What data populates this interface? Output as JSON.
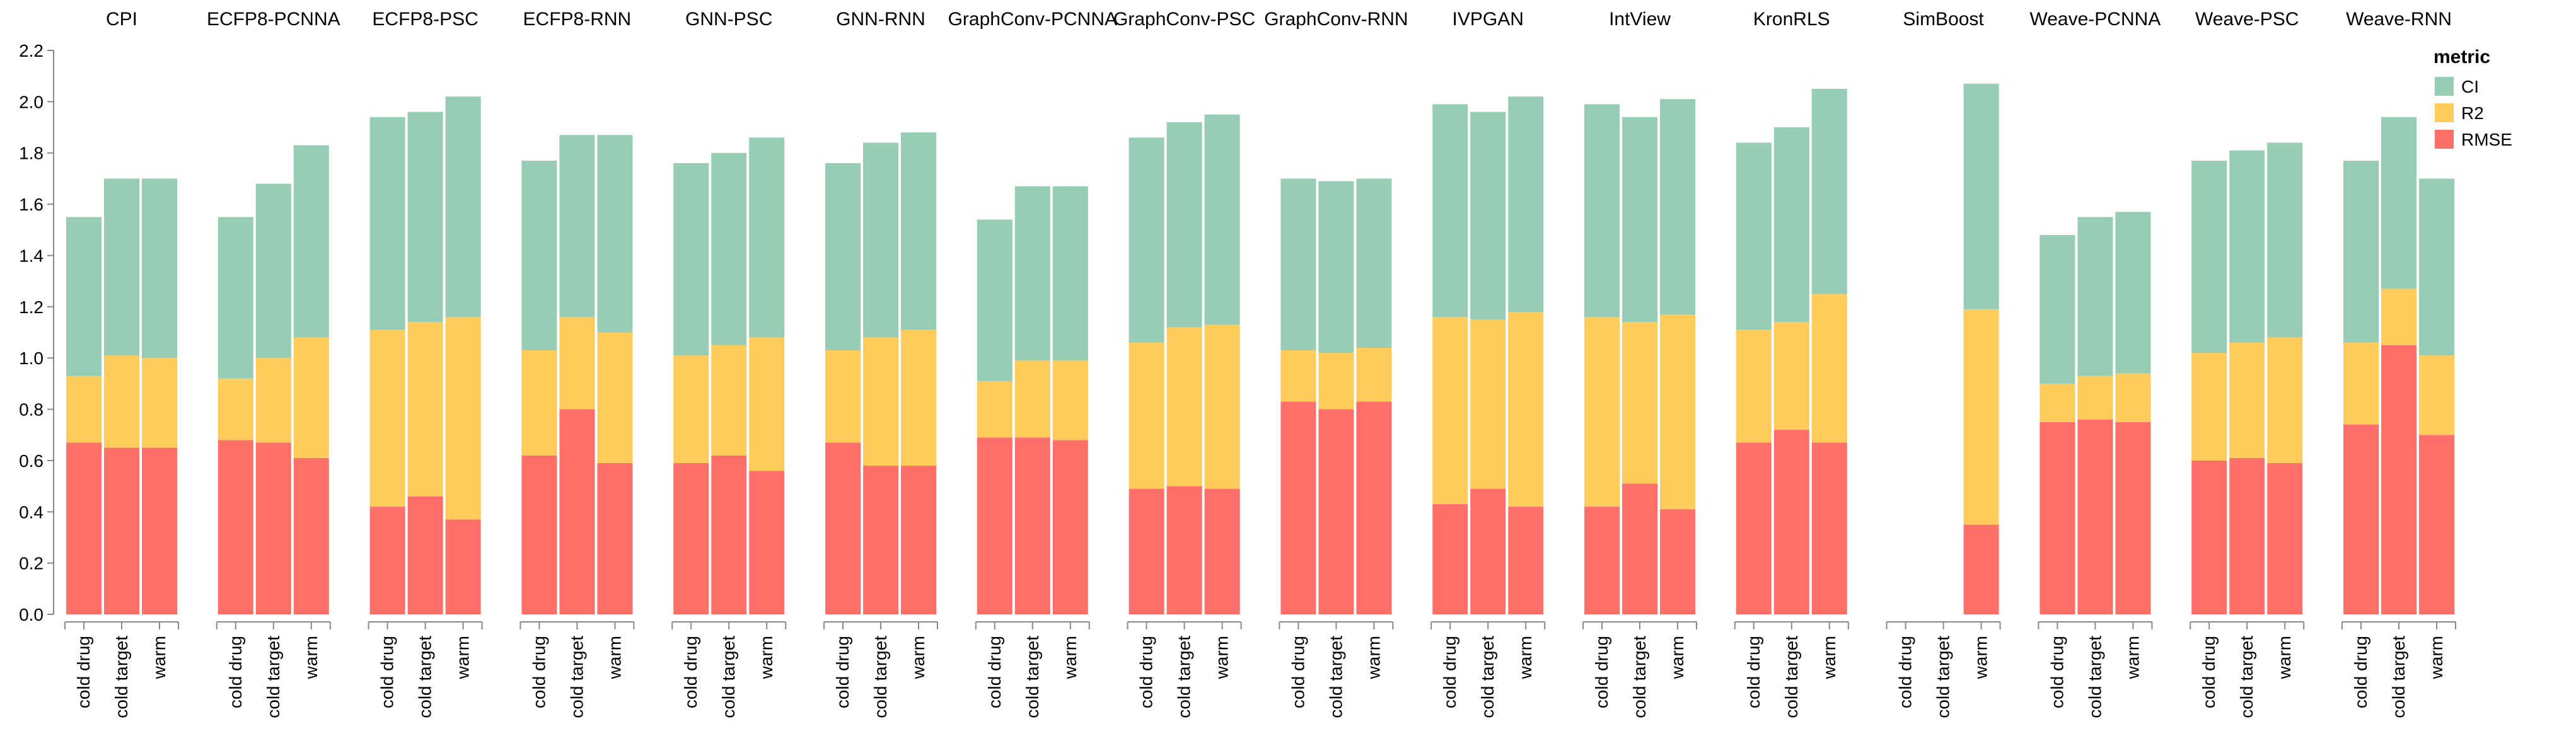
{
  "chart_data": {
    "type": "bar",
    "stacked": true,
    "faceted_by": "model",
    "legend": {
      "title": "metric",
      "position": "top-right",
      "entries": [
        {
          "name": "CI",
          "color": "#96CDB4"
        },
        {
          "name": "R2",
          "color": "#FFCC5C"
        },
        {
          "name": "RMSE",
          "color": "#FF6F69"
        }
      ]
    },
    "ylim": [
      0,
      2.2
    ],
    "yticks": [
      "0.0",
      "0.2",
      "0.4",
      "0.6",
      "0.8",
      "1.0",
      "1.2",
      "1.4",
      "1.6",
      "1.8",
      "2.0",
      "2.2"
    ],
    "categories": [
      "cold drug",
      "cold target",
      "warm"
    ],
    "stack_order": [
      "RMSE",
      "R2",
      "CI"
    ],
    "facets": [
      {
        "name": "CPI",
        "bars": [
          {
            "RMSE": 0.67,
            "R2": 0.26,
            "CI": 0.62
          },
          {
            "RMSE": 0.65,
            "R2": 0.36,
            "CI": 0.69
          },
          {
            "RMSE": 0.65,
            "R2": 0.35,
            "CI": 0.7
          }
        ]
      },
      {
        "name": "ECFP8-PCNNA",
        "bars": [
          {
            "RMSE": 0.68,
            "R2": 0.24,
            "CI": 0.63
          },
          {
            "RMSE": 0.67,
            "R2": 0.33,
            "CI": 0.68
          },
          {
            "RMSE": 0.61,
            "R2": 0.47,
            "CI": 0.75
          }
        ]
      },
      {
        "name": "ECFP8-PSC",
        "bars": [
          {
            "RMSE": 0.42,
            "R2": 0.69,
            "CI": 0.83
          },
          {
            "RMSE": 0.46,
            "R2": 0.68,
            "CI": 0.82
          },
          {
            "RMSE": 0.37,
            "R2": 0.79,
            "CI": 0.86
          }
        ]
      },
      {
        "name": "ECFP8-RNN",
        "bars": [
          {
            "RMSE": 0.62,
            "R2": 0.41,
            "CI": 0.74
          },
          {
            "RMSE": 0.8,
            "R2": 0.36,
            "CI": 0.71
          },
          {
            "RMSE": 0.59,
            "R2": 0.51,
            "CI": 0.77
          }
        ]
      },
      {
        "name": "GNN-PSC",
        "bars": [
          {
            "RMSE": 0.59,
            "R2": 0.42,
            "CI": 0.75
          },
          {
            "RMSE": 0.62,
            "R2": 0.43,
            "CI": 0.75
          },
          {
            "RMSE": 0.56,
            "R2": 0.52,
            "CI": 0.78
          }
        ]
      },
      {
        "name": "GNN-RNN",
        "bars": [
          {
            "RMSE": 0.67,
            "R2": 0.36,
            "CI": 0.73
          },
          {
            "RMSE": 0.58,
            "R2": 0.5,
            "CI": 0.76
          },
          {
            "RMSE": 0.58,
            "R2": 0.53,
            "CI": 0.77
          }
        ]
      },
      {
        "name": "GraphConv-PCNNA",
        "bars": [
          {
            "RMSE": 0.69,
            "R2": 0.22,
            "CI": 0.63
          },
          {
            "RMSE": 0.69,
            "R2": 0.3,
            "CI": 0.68
          },
          {
            "RMSE": 0.68,
            "R2": 0.31,
            "CI": 0.68
          }
        ]
      },
      {
        "name": "GraphConv-PSC",
        "bars": [
          {
            "RMSE": 0.49,
            "R2": 0.57,
            "CI": 0.8
          },
          {
            "RMSE": 0.5,
            "R2": 0.62,
            "CI": 0.8
          },
          {
            "RMSE": 0.49,
            "R2": 0.64,
            "CI": 0.82
          }
        ]
      },
      {
        "name": "GraphConv-RNN",
        "bars": [
          {
            "RMSE": 0.83,
            "R2": 0.2,
            "CI": 0.67
          },
          {
            "RMSE": 0.8,
            "R2": 0.22,
            "CI": 0.67
          },
          {
            "RMSE": 0.83,
            "R2": 0.21,
            "CI": 0.66
          }
        ]
      },
      {
        "name": "IVPGAN",
        "bars": [
          {
            "RMSE": 0.43,
            "R2": 0.73,
            "CI": 0.83
          },
          {
            "RMSE": 0.49,
            "R2": 0.66,
            "CI": 0.81
          },
          {
            "RMSE": 0.42,
            "R2": 0.76,
            "CI": 0.84
          }
        ]
      },
      {
        "name": "IntView",
        "bars": [
          {
            "RMSE": 0.42,
            "R2": 0.74,
            "CI": 0.83
          },
          {
            "RMSE": 0.51,
            "R2": 0.63,
            "CI": 0.8
          },
          {
            "RMSE": 0.41,
            "R2": 0.76,
            "CI": 0.84
          }
        ]
      },
      {
        "name": "KronRLS",
        "bars": [
          {
            "RMSE": 0.67,
            "R2": 0.44,
            "CI": 0.73
          },
          {
            "RMSE": 0.72,
            "R2": 0.42,
            "CI": 0.76
          },
          {
            "RMSE": 0.67,
            "R2": 0.58,
            "CI": 0.8
          }
        ]
      },
      {
        "name": "SimBoost",
        "bars": [
          {
            "RMSE": 0,
            "R2": 0,
            "CI": 0
          },
          {
            "RMSE": 0,
            "R2": 0,
            "CI": 0
          },
          {
            "RMSE": 0.35,
            "R2": 0.84,
            "CI": 0.88
          }
        ]
      },
      {
        "name": "Weave-PCNNA",
        "bars": [
          {
            "RMSE": 0.75,
            "R2": 0.15,
            "CI": 0.58
          },
          {
            "RMSE": 0.76,
            "R2": 0.17,
            "CI": 0.62
          },
          {
            "RMSE": 0.75,
            "R2": 0.19,
            "CI": 0.63
          }
        ]
      },
      {
        "name": "Weave-PSC",
        "bars": [
          {
            "RMSE": 0.6,
            "R2": 0.42,
            "CI": 0.75
          },
          {
            "RMSE": 0.61,
            "R2": 0.45,
            "CI": 0.75
          },
          {
            "RMSE": 0.59,
            "R2": 0.49,
            "CI": 0.76
          }
        ]
      },
      {
        "name": "Weave-RNN",
        "bars": [
          {
            "RMSE": 0.74,
            "R2": 0.32,
            "CI": 0.71
          },
          {
            "RMSE": 1.05,
            "R2": 0.22,
            "CI": 0.67
          },
          {
            "RMSE": 0.7,
            "R2": 0.31,
            "CI": 0.69
          }
        ]
      }
    ]
  }
}
